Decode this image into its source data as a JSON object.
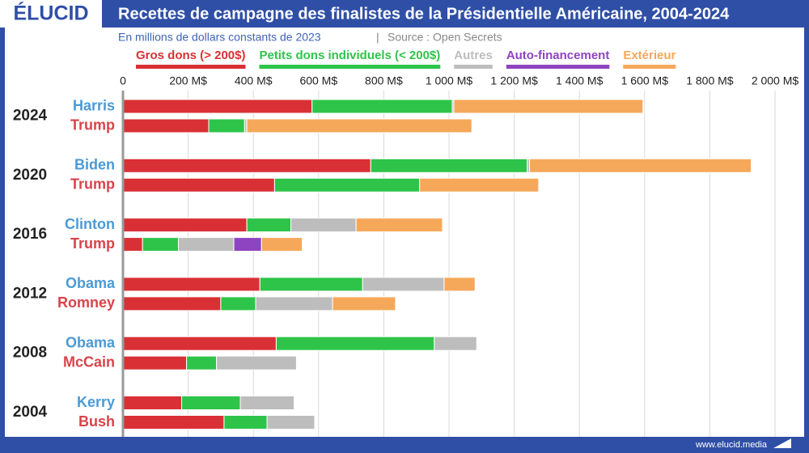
{
  "header": {
    "logo": "ÉLUCID"
  },
  "footer": {
    "site": "www.elucid.media"
  },
  "chart_data": {
    "type": "stacked-barh",
    "title": "Recettes de campagne des finalistes de la Présidentielle Américaine, 2004-2024",
    "subtitle": "En millions de dollars constants de 2023",
    "source": "Source : Open Secrets",
    "years": [
      "2024",
      "2020",
      "2016",
      "2012",
      "2008",
      "2004"
    ],
    "categories": [
      "Harris",
      "Trump",
      "Biden",
      "Trump",
      "Clinton",
      "Trump",
      "Obama",
      "Romney",
      "Obama",
      "McCain",
      "Kerry",
      "Bush"
    ],
    "category_colors": [
      "#4a9ad6",
      "#d9434a",
      "#4a9ad6",
      "#d9434a",
      "#4a9ad6",
      "#d9434a",
      "#4a9ad6",
      "#d9434a",
      "#4a9ad6",
      "#d9434a",
      "#4a9ad6",
      "#d9434a"
    ],
    "series": [
      {
        "name": "Gros dons (> 200$)",
        "color": "#d93035",
        "values": [
          580,
          263,
          760,
          465,
          380,
          60,
          420,
          300,
          470,
          195,
          180,
          310
        ]
      },
      {
        "name": "Petits dons individuels (< 200$)",
        "color": "#2ec44a",
        "values": [
          430,
          110,
          480,
          445,
          135,
          110,
          315,
          107,
          485,
          92,
          180,
          132
        ]
      },
      {
        "name": "Autres",
        "color": "#bdbdbd",
        "values": [
          5,
          7,
          7,
          0,
          200,
          170,
          250,
          236,
          130,
          245,
          165,
          146
        ]
      },
      {
        "name": "Auto-financement",
        "color": "#8e44c0",
        "values": [
          0,
          0,
          0,
          0,
          0,
          85,
          0,
          0,
          0,
          0,
          0,
          0
        ]
      },
      {
        "name": "Extérieur",
        "color": "#f5a85a",
        "values": [
          580,
          690,
          680,
          365,
          265,
          125,
          95,
          193,
          0,
          0,
          0,
          0
        ]
      }
    ],
    "xlim": [
      0,
      2000
    ],
    "xticks": [
      0,
      {
        "value": 200,
        "label": "200 M$"
      },
      {
        "value": 400,
        "label": "400 M$"
      },
      {
        "value": 600,
        "label": "600 M$"
      },
      {
        "value": 800,
        "label": "800 M$"
      },
      {
        "value": 1000,
        "label": "1 000 M$"
      },
      {
        "value": 1200,
        "label": "1 200 M$"
      },
      {
        "value": 1400,
        "label": "1 400 M$"
      },
      {
        "value": 1600,
        "label": "1 600 M$"
      },
      {
        "value": 1800,
        "label": "1 800 M$"
      },
      {
        "value": 2000,
        "label": "2 000 M$"
      }
    ],
    "grid": true
  }
}
